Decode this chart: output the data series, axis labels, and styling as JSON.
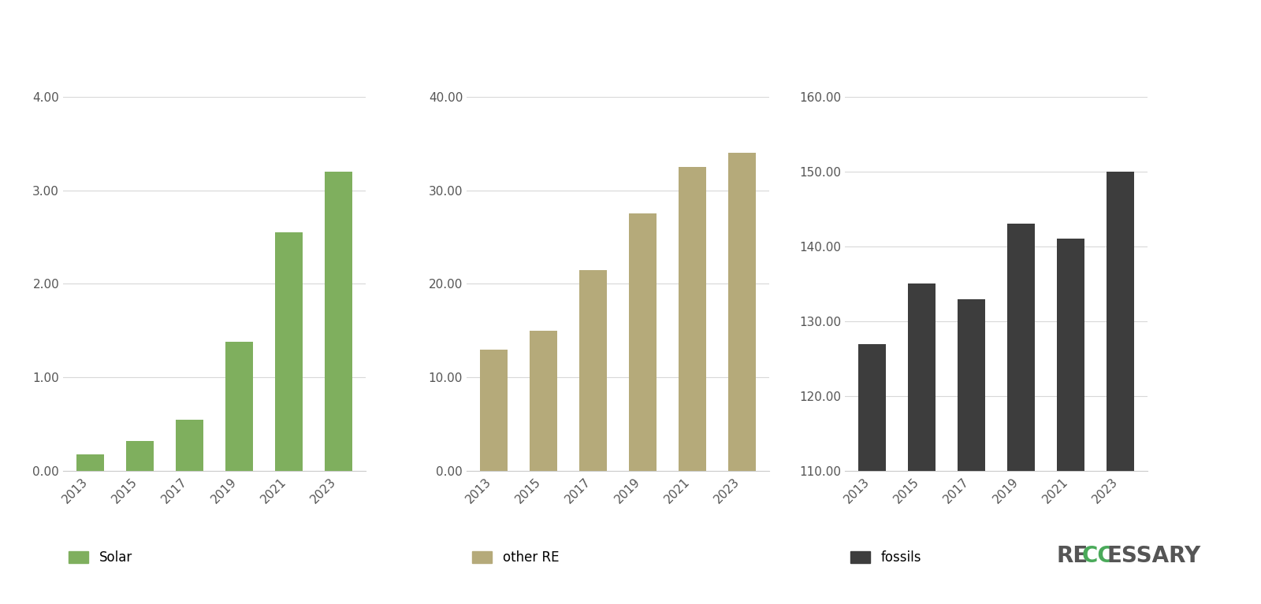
{
  "years": [
    2013,
    2015,
    2017,
    2019,
    2021,
    2023
  ],
  "solar": [
    0.18,
    0.32,
    0.55,
    1.38,
    2.55,
    3.2
  ],
  "other_re": [
    13.0,
    15.0,
    21.5,
    27.5,
    32.5,
    34.0
  ],
  "fossils": [
    127.0,
    135.0,
    133.0,
    143.0,
    141.0,
    150.0
  ],
  "solar_color": "#7faf5e",
  "other_re_color": "#b5aa7a",
  "fossils_color": "#3d3d3d",
  "solar_label": "Solar",
  "other_re_label": "other RE",
  "fossils_label": "fossils",
  "solar_ylim": [
    0,
    4.0
  ],
  "solar_yticks": [
    0.0,
    1.0,
    2.0,
    3.0,
    4.0
  ],
  "other_re_ylim": [
    0,
    40.0
  ],
  "other_re_yticks": [
    0.0,
    10.0,
    20.0,
    30.0,
    40.0
  ],
  "fossils_ylim": [
    110.0,
    160.0
  ],
  "fossils_yticks": [
    110.0,
    120.0,
    130.0,
    140.0,
    150.0,
    160.0
  ],
  "background_color": "#ffffff",
  "grid_color": "#d8d8d8",
  "tick_label_color": "#555555",
  "reccessary_color_green": "#4aaa5a",
  "reccessary_color_dark": "#555555"
}
